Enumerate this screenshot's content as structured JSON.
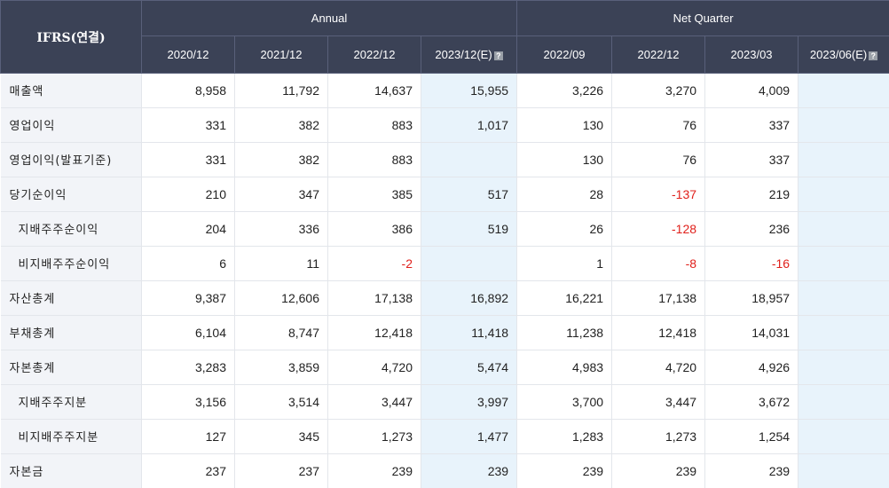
{
  "header": {
    "corner": "IFRS(연결)",
    "annual": "Annual",
    "quarter": "Net Quarter",
    "periods": [
      "2020/12",
      "2021/12",
      "2022/12",
      "2023/12(E)",
      "2022/09",
      "2022/12",
      "2023/03",
      "2023/06(E)"
    ],
    "estimate_icon": "?"
  },
  "rows": [
    {
      "label": "매출액",
      "values": [
        "8,958",
        "11,792",
        "14,637",
        "15,955",
        "3,226",
        "3,270",
        "4,009",
        ""
      ]
    },
    {
      "label": "영업이익",
      "values": [
        "331",
        "382",
        "883",
        "1,017",
        "130",
        "76",
        "337",
        ""
      ]
    },
    {
      "label": "영업이익(발표기준)",
      "values": [
        "331",
        "382",
        "883",
        "",
        "130",
        "76",
        "337",
        ""
      ]
    },
    {
      "label": "당기순이익",
      "values": [
        "210",
        "347",
        "385",
        "517",
        "28",
        "-137",
        "219",
        ""
      ]
    },
    {
      "label": "지배주주순이익",
      "values": [
        "204",
        "336",
        "386",
        "519",
        "26",
        "-128",
        "236",
        ""
      ]
    },
    {
      "label": "비지배주주순이익",
      "values": [
        "6",
        "11",
        "-2",
        "",
        "1",
        "-8",
        "-16",
        ""
      ]
    },
    {
      "label": "자산총계",
      "values": [
        "9,387",
        "12,606",
        "17,138",
        "16,892",
        "16,221",
        "17,138",
        "18,957",
        ""
      ]
    },
    {
      "label": "부채총계",
      "values": [
        "6,104",
        "8,747",
        "12,418",
        "11,418",
        "11,238",
        "12,418",
        "14,031",
        ""
      ]
    },
    {
      "label": "자본총계",
      "values": [
        "3,283",
        "3,859",
        "4,720",
        "5,474",
        "4,983",
        "4,720",
        "4,926",
        ""
      ]
    },
    {
      "label": "지배주주지분",
      "values": [
        "3,156",
        "3,514",
        "3,447",
        "3,997",
        "3,700",
        "3,447",
        "3,672",
        ""
      ]
    },
    {
      "label": "비지배주주지분",
      "values": [
        "127",
        "345",
        "1,273",
        "1,477",
        "1,283",
        "1,273",
        "1,254",
        ""
      ]
    },
    {
      "label": "자본금",
      "values": [
        "237",
        "237",
        "239",
        "239",
        "239",
        "239",
        "239",
        ""
      ]
    }
  ],
  "colors": {
    "header_bg": "#3b4256",
    "label_bg": "#f2f4f8",
    "estimate_bg": "#e8f3fb",
    "negative": "#e0201b"
  }
}
